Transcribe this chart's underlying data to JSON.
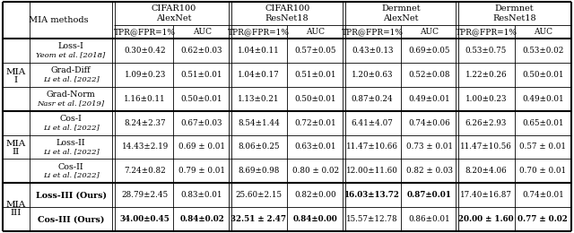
{
  "col_groups": [
    "CIFAR100\nAlexNet",
    "CIFAR100\nResNet18",
    "Dermnet\nAlexNet",
    "Dermnet\nResNet18"
  ],
  "subheaders": [
    "TPR@FPR=1%",
    "AUC",
    "TPR@FPR=1%",
    "AUC",
    "TPR@FPR=1%",
    "AUC",
    "TPR@FPR=1%",
    "AUC"
  ],
  "row_labels": [
    [
      "Loss-I",
      "Yeom et al. [2018]"
    ],
    [
      "Grad-Diff",
      "Li et al. [2022]"
    ],
    [
      "Grad-Norm",
      "Nasr et al. [2019]"
    ],
    [
      "Cos-I",
      "Li et al. [2022]"
    ],
    [
      "Loss-II",
      "Li et al. [2022]"
    ],
    [
      "Cos-II",
      "Li et al. [2022]"
    ],
    [
      "Loss-III (Ours)",
      null
    ],
    [
      "Cos-III (Ours)",
      null
    ]
  ],
  "cells": [
    [
      "0.30±0.42",
      "0.62±0.03",
      "1.04±0.11",
      "0.57±0.05",
      "0.43±0.13",
      "0.69±0.05",
      "0.53±0.75",
      "0.53±0.02"
    ],
    [
      "1.09±0.23",
      "0.51±0.01",
      "1.04±0.17",
      "0.51±0.01",
      "1.20±0.63",
      "0.52±0.08",
      "1.22±0.26",
      "0.50±0.01"
    ],
    [
      "1.16±0.11",
      "0.50±0.01",
      "1.13±0.21",
      "0.50±0.01",
      "0.87±0.24",
      "0.49±0.01",
      "1.00±0.23",
      "0.49±0.01"
    ],
    [
      "8.24±2.37",
      "0.67±0.03",
      "8.54±1.44",
      "0.72±0.01",
      "6.41±4.07",
      "0.74±0.06",
      "6.26±2.93",
      "0.65±0.01"
    ],
    [
      "14.43±2.19",
      "0.69 ± 0.01",
      "8.06±0.25",
      "0.63±0.01",
      "11.47±10.66",
      "0.73 ± 0.01",
      "11.47±10.56",
      "0.57 ± 0.01"
    ],
    [
      "7.24±0.82",
      "0.79 ± 0.01",
      "8.69±0.98",
      "0.80 ± 0.02",
      "12.00±11.60",
      "0.82 ± 0.03",
      "8.20±4.06",
      "0.70 ± 0.01"
    ],
    [
      "28.79±2.45",
      "0.83±0.01",
      "25.60±2.15",
      "0.82±0.00",
      "16.03±13.72",
      "0.87±0.01",
      "17.40±16.87",
      "0.74±0.01"
    ],
    [
      "34.00±0.45",
      "0.84±0.02",
      "32.51 ± 2.47",
      "0.84±0.00",
      "15.57±12.78",
      "0.86±0.01",
      "20.00 ± 1.60",
      "0.77 ± 0.02"
    ]
  ],
  "bold_cells": [
    [
      false,
      false,
      false,
      false,
      false,
      false,
      false,
      false
    ],
    [
      false,
      false,
      false,
      false,
      false,
      false,
      false,
      false
    ],
    [
      false,
      false,
      false,
      false,
      false,
      false,
      false,
      false
    ],
    [
      false,
      false,
      false,
      false,
      false,
      false,
      false,
      false
    ],
    [
      false,
      false,
      false,
      false,
      false,
      false,
      false,
      false
    ],
    [
      false,
      false,
      false,
      false,
      false,
      false,
      false,
      false
    ],
    [
      false,
      false,
      false,
      false,
      true,
      true,
      false,
      false
    ],
    [
      true,
      true,
      true,
      true,
      false,
      false,
      true,
      true
    ]
  ],
  "mia_group_labels": [
    "MIA\nI",
    "MIA\nII",
    "MIA\nIII"
  ],
  "mia_group_rows": [
    [
      0,
      2
    ],
    [
      3,
      5
    ],
    [
      6,
      7
    ]
  ],
  "header_label": "MIA methods"
}
